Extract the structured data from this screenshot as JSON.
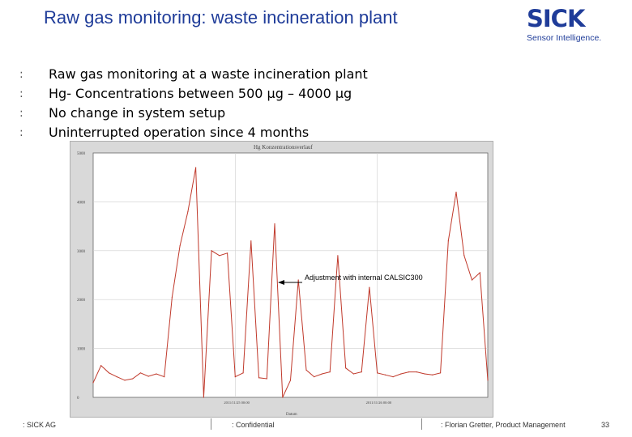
{
  "slide": {
    "title": "Raw gas monitoring: waste incineration plant",
    "bullets": [
      {
        "mark": ":",
        "text": "Raw gas monitoring at a waste incineration plant"
      },
      {
        "mark": ":",
        "text": "Hg- Concentrations between 500 µg – 4000 µg"
      },
      {
        "mark": ":",
        "text": "No change in system setup"
      },
      {
        "mark": ":",
        "text": "Uninterrupted operation since 4 months"
      }
    ]
  },
  "logo": {
    "brand": "SICK",
    "tagline": "Sensor Intelligence.",
    "color": "#1f3c99"
  },
  "chart_data": {
    "type": "line",
    "title": "Hg Konzentrationsverlauf",
    "xlabel": "Datum",
    "ylabel": "",
    "ylim": [
      0,
      5000
    ],
    "yticks": [
      0,
      1000,
      2000,
      3000,
      4000,
      5000
    ],
    "xticks": [
      "2011/11/25 00:00",
      "2011/11/26 00:00"
    ],
    "grid": true,
    "series": [
      {
        "color": "#c0392b",
        "x": [
          0,
          2,
          4,
          6,
          8,
          10,
          12,
          14,
          16,
          18,
          20,
          22,
          24,
          26,
          28,
          30,
          32,
          34,
          36,
          38,
          40,
          42,
          44,
          46,
          48,
          50,
          52,
          54,
          56,
          58,
          60,
          62,
          64,
          66,
          68,
          70,
          72,
          74,
          76,
          78,
          80,
          82,
          84,
          86,
          88,
          90,
          92,
          94,
          96,
          98,
          100
        ],
        "values": [
          300,
          650,
          500,
          420,
          350,
          380,
          500,
          430,
          480,
          420,
          2050,
          3100,
          3800,
          4700,
          0,
          3000,
          2900,
          2950,
          420,
          500,
          3200,
          400,
          380,
          3550,
          0,
          350,
          2400,
          560,
          420,
          480,
          520,
          2900,
          600,
          480,
          520,
          2250,
          500,
          460,
          420,
          480,
          520,
          520,
          480,
          460,
          500,
          3200,
          4200,
          2900,
          2400,
          2550,
          350
        ]
      }
    ],
    "annotation": {
      "text": "Adjustment with internal CALSIC300",
      "x": 47,
      "y": 2500
    }
  },
  "footer": {
    "company": ": SICK AG",
    "confidential": ": Confidential",
    "author": ": Florian Gretter, Product Management",
    "page": "33"
  }
}
